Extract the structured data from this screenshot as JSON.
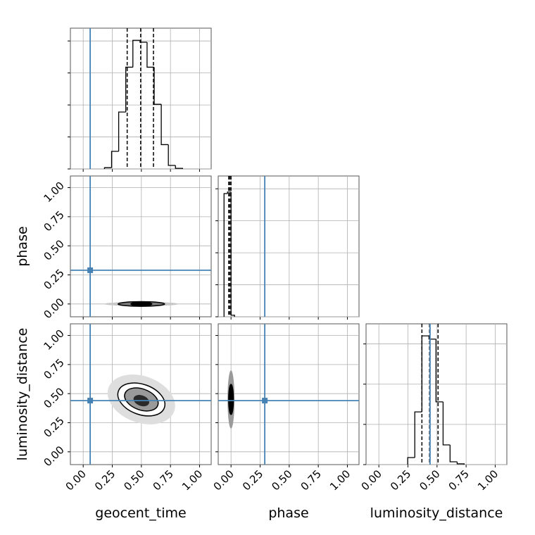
{
  "chart_data": {
    "type": "corner",
    "parameters": [
      "geocent_time",
      "phase",
      "luminosity_distance"
    ],
    "lim": [
      -0.11,
      1.1
    ],
    "ticks": [
      {
        "value": 0,
        "label": "0.00"
      },
      {
        "value": 0.25,
        "label": "0.25"
      },
      {
        "value": 0.5,
        "label": "0.50"
      },
      {
        "value": 0.75,
        "label": "0.75"
      },
      {
        "value": 1,
        "label": "1.00"
      }
    ],
    "grid": true,
    "truth_color": "#4682b4",
    "hist_color": "#000000",
    "truths": [
      0.06,
      0.29,
      0.44
    ],
    "quantiles": [
      [
        0.378,
        0.494,
        0.604
      ],
      [
        -0.02,
        -0.01,
        0.0
      ],
      [
        0.37,
        0.436,
        0.509
      ]
    ],
    "histograms": [
      {
        "bins": [
          0.183,
          0.244,
          0.305,
          0.366,
          0.427,
          0.488,
          0.549,
          0.61,
          0.671,
          0.732,
          0.793,
          0.854
        ],
        "counts": [
          0.04,
          0.55,
          1.78,
          3.18,
          4.02,
          3.96,
          3.18,
          2.02,
          0.76,
          0.11,
          0.02
        ],
        "ylim": [
          0,
          4.4
        ],
        "yticks": [
          0,
          1,
          2,
          3,
          4
        ]
      },
      {
        "bins": [
          -0.06,
          -0.03,
          0.0,
          0.03
        ],
        "counts": [
          3.85,
          3.9,
          0.05
        ],
        "ylim": [
          0,
          4.4
        ],
        "yticks": [
          0,
          1,
          2,
          3,
          4
        ]
      },
      {
        "bins": [
          0.248,
          0.309,
          0.37,
          0.431,
          0.491,
          0.552,
          0.612,
          0.673,
          0.733
        ],
        "counts": [
          0.175,
          1.31,
          3.2,
          3.12,
          1.56,
          0.49,
          0.07,
          0.02
        ],
        "ylim": [
          0,
          3.5
        ],
        "yticks": [
          0,
          1,
          2,
          3
        ]
      }
    ],
    "pairs": [
      {
        "x": 0,
        "y": 1,
        "contours": [
          {
            "x": 0.5,
            "y": 0.0,
            "rx": 0.32,
            "ry": 0.018,
            "angle": 0,
            "fill": "#c8c8c8",
            "stroke": "none"
          },
          {
            "x": 0.5,
            "y": 0.0,
            "rx": 0.2,
            "ry": 0.02,
            "angle": 0,
            "fill": "#7a7a7a",
            "stroke": "#000000"
          },
          {
            "x": 0.5,
            "y": 0.0,
            "rx": 0.09,
            "ry": 0.016,
            "angle": 0,
            "fill": "#000000",
            "stroke": "#000000"
          }
        ]
      },
      {
        "x": 0,
        "y": 2,
        "contours": [
          {
            "x": 0.5,
            "y": 0.45,
            "rx": 0.3,
            "ry": 0.2,
            "angle": 20,
            "fill": "#dedede",
            "stroke": "none"
          },
          {
            "x": 0.5,
            "y": 0.45,
            "rx": 0.21,
            "ry": 0.13,
            "angle": 20,
            "fill": "#ffffff",
            "stroke": "#000000"
          },
          {
            "x": 0.5,
            "y": 0.45,
            "rx": 0.15,
            "ry": 0.09,
            "angle": 20,
            "fill": "#9a9a9a",
            "stroke": "#000000"
          },
          {
            "x": 0.5,
            "y": 0.44,
            "rx": 0.07,
            "ry": 0.045,
            "angle": 20,
            "fill": "#2a2a2a",
            "stroke": "none"
          }
        ]
      },
      {
        "x": 1,
        "y": 2,
        "contours": [
          {
            "x": 0.0,
            "y": 0.45,
            "rx": 0.03,
            "ry": 0.25,
            "angle": 0,
            "fill": "#9a9a9a",
            "stroke": "none"
          },
          {
            "x": 0.0,
            "y": 0.45,
            "rx": 0.02,
            "ry": 0.13,
            "angle": 0,
            "fill": "#000000",
            "stroke": "#000000"
          }
        ]
      }
    ]
  }
}
